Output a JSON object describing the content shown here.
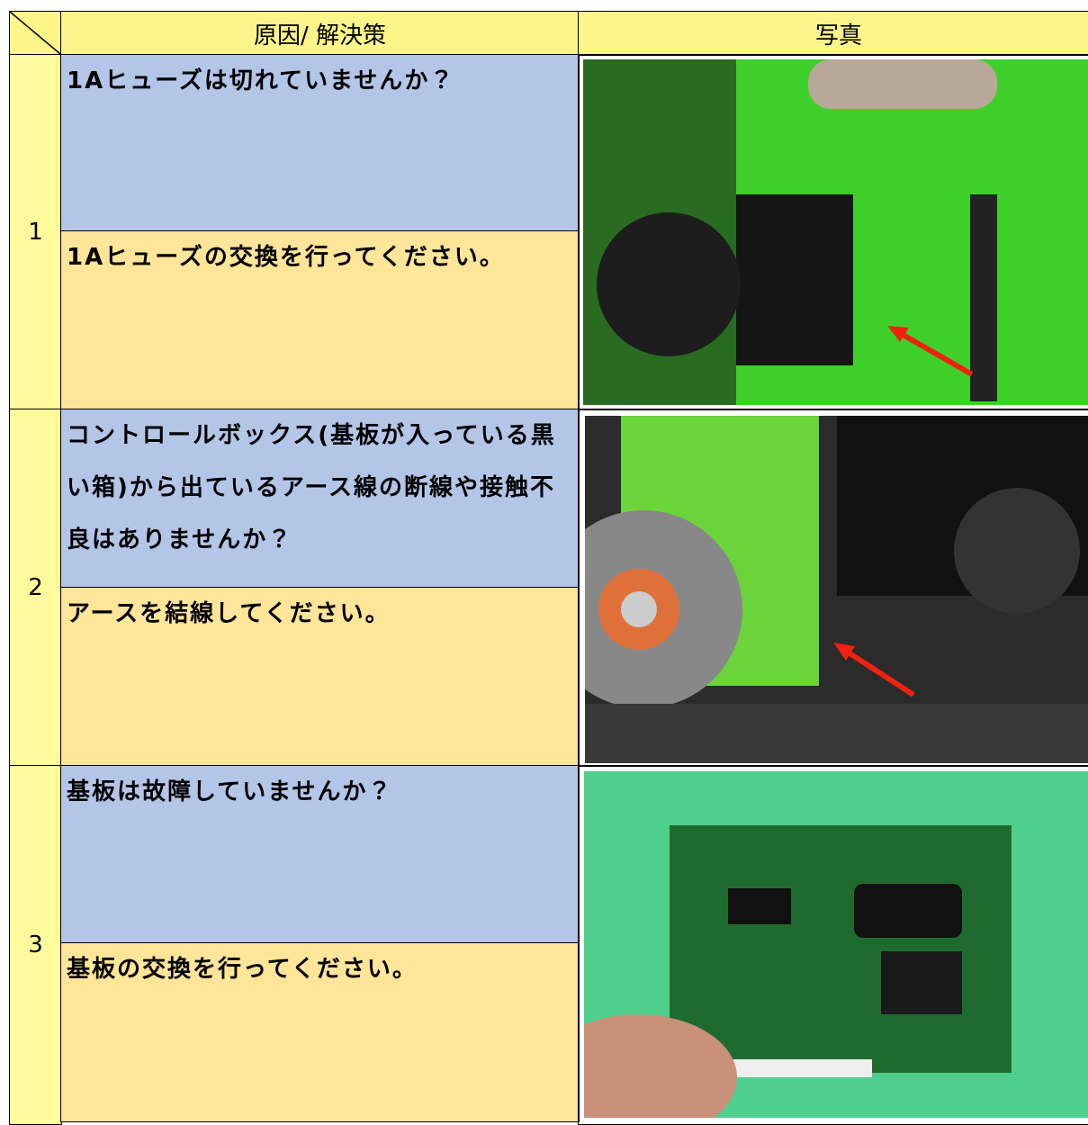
{
  "header": {
    "cause_solution": "原因/ 解決策",
    "photo": "写真"
  },
  "rows": [
    {
      "number": "1",
      "cause": "1Aヒューズは切れていませんか？",
      "solution": "1Aヒューズの交換を行ってください。"
    },
    {
      "number": "2",
      "cause": "コントロールボックス(基板が入っている黒い箱)から出ているアース線の断線や接触不良はありませんか？",
      "solution": "アースを結線してください。"
    },
    {
      "number": "3",
      "cause": "基板は故障していませんか？",
      "solution": "基板の交換を行ってください。"
    }
  ]
}
